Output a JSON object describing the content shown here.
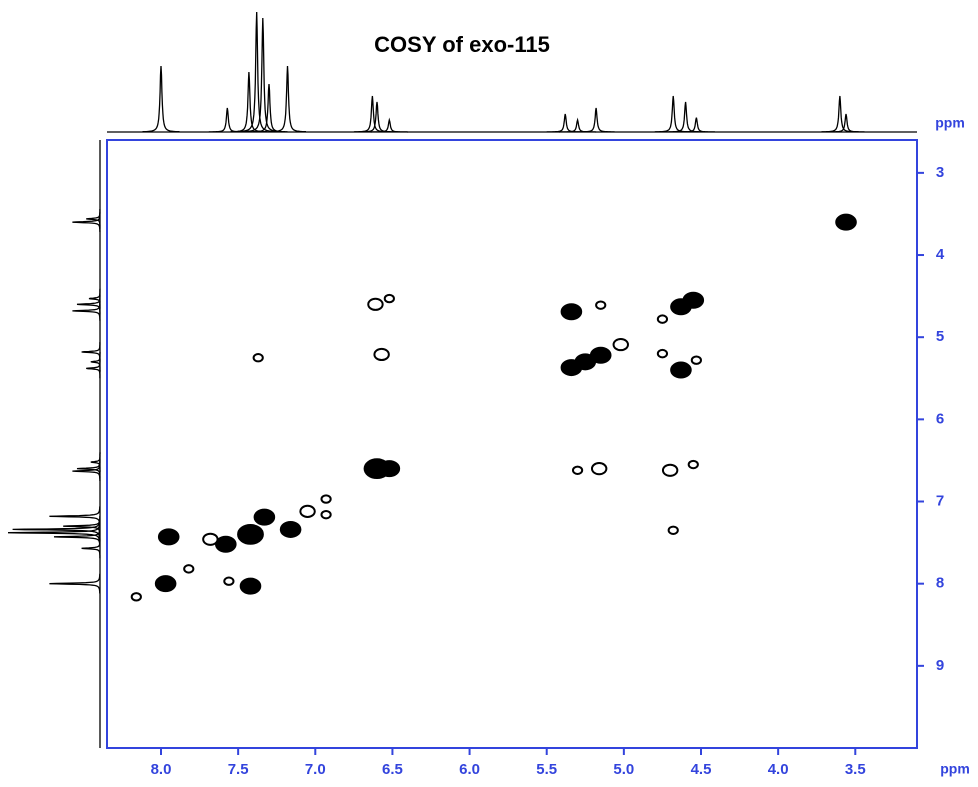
{
  "chart_data": {
    "type": "cosy",
    "title": "COSY of exo-115",
    "x_label": "ppm",
    "y_label": "ppm",
    "xlim": [
      8.35,
      3.1
    ],
    "ylim": [
      2.6,
      10.0
    ],
    "xticks": [
      {
        "value": 8,
        "label": "8.0"
      },
      7.5,
      {
        "value": 7,
        "label": "7.0"
      },
      6.5,
      {
        "value": 6,
        "label": "6.0"
      },
      5.5,
      {
        "value": 5,
        "label": "5.0"
      },
      4.5,
      {
        "value": 4,
        "label": "4.0"
      },
      3.5
    ],
    "yticks": [
      3,
      4,
      5,
      6,
      7,
      8,
      9
    ],
    "axis_color": "#3344dd",
    "peak_color": "#000000",
    "peaks": {
      "x": [
        3.56,
        4.55,
        4.63,
        4.75,
        5.34,
        5.15,
        5.34,
        5.25,
        5.15,
        5.02,
        4.63,
        4.53,
        4.75,
        6.61,
        6.52,
        6.57,
        6.6,
        6.52,
        5.16,
        5.3,
        4.7,
        4.55,
        4.68,
        7.37,
        6.93,
        6.93,
        7.05,
        7.95,
        7.97,
        7.42,
        7.33,
        7.16,
        7.58,
        7.42,
        8.16,
        7.82,
        7.56,
        7.68
      ],
      "y": [
        3.6,
        4.55,
        4.63,
        4.78,
        4.69,
        4.61,
        5.37,
        5.3,
        5.22,
        5.09,
        5.4,
        5.28,
        5.2,
        4.6,
        4.53,
        5.21,
        6.6,
        6.6,
        6.6,
        6.62,
        6.62,
        6.55,
        7.35,
        5.25,
        6.97,
        7.16,
        7.12,
        7.43,
        8.0,
        7.4,
        7.19,
        7.34,
        7.52,
        8.03,
        8.16,
        7.82,
        7.97,
        7.46
      ],
      "intensity": [
        3,
        3,
        3,
        1,
        3,
        1,
        3,
        3,
        3,
        2,
        3,
        1,
        1,
        2,
        1,
        2,
        4,
        3,
        2,
        1,
        2,
        1,
        1,
        1,
        1,
        1,
        2,
        3,
        3,
        4,
        3,
        3,
        3,
        3,
        1,
        1,
        1,
        2
      ]
    },
    "projection": {
      "shift": [
        8.0,
        7.57,
        7.43,
        7.38,
        7.34,
        7.3,
        7.18,
        6.63,
        6.6,
        6.52,
        5.38,
        5.3,
        5.18,
        4.68,
        4.6,
        4.53,
        3.6,
        3.56
      ],
      "height": [
        0.55,
        0.2,
        0.5,
        1.0,
        0.95,
        0.4,
        0.55,
        0.3,
        0.25,
        0.1,
        0.15,
        0.1,
        0.2,
        0.3,
        0.25,
        0.12,
        0.3,
        0.15
      ]
    }
  }
}
